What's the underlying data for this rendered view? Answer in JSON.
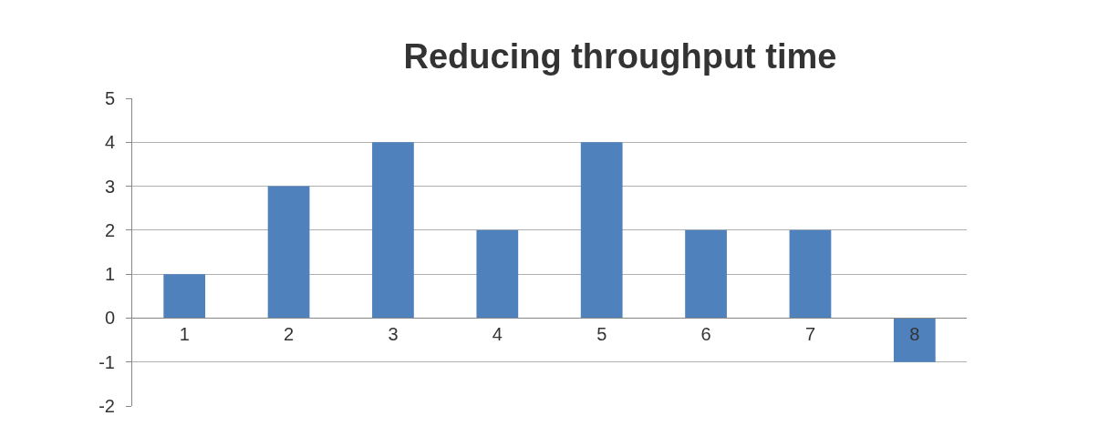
{
  "chart_data": {
    "type": "bar",
    "title": "Reducing throughput time",
    "categories": [
      "1",
      "2",
      "3",
      "4",
      "5",
      "6",
      "7",
      "8"
    ],
    "values": [
      1,
      3,
      4,
      2,
      4,
      2,
      2,
      -1
    ],
    "color": "#4f81bd",
    "ylim": [
      -2,
      5
    ],
    "yticks": [
      -2,
      -1,
      0,
      1,
      2,
      3,
      4,
      5
    ],
    "grid": "y",
    "legend": false
  }
}
